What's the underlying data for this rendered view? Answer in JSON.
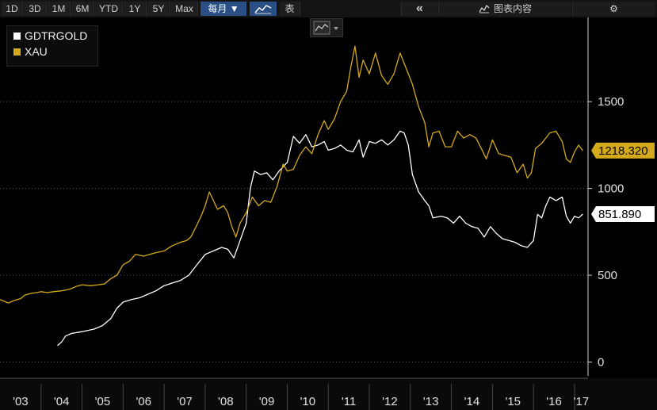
{
  "toolbar": {
    "periods": [
      "1D",
      "3D",
      "1M",
      "6M",
      "YTD",
      "1Y",
      "5Y",
      "Max"
    ],
    "frequency": "每月 ▼",
    "table_label": "表",
    "collapse_label": "«",
    "chart_content_label": "图表内容",
    "settings_label": "⚙"
  },
  "colors": {
    "gdtrgold": "#ffffff",
    "xau": "#d4aa1c",
    "background": "#000000",
    "toolbar_selected": "#2a4f86"
  },
  "chart_data": {
    "type": "line",
    "x_tick_labels": [
      "'03",
      "'04",
      "'05",
      "'06",
      "'07",
      "'08",
      "'09",
      "'10",
      "'11",
      "'12",
      "'13",
      "'14",
      "'15",
      "'16",
      "'17"
    ],
    "y_ticks": [
      0,
      500,
      1000,
      1500
    ],
    "ylim": [
      -80,
      1985
    ],
    "xlim": [
      2003.0,
      2017.33
    ],
    "grid": true,
    "legend_position": "top-left",
    "series": [
      {
        "name": "GDTRGOLD",
        "color": "#ffffff",
        "last_value_label": "851.890",
        "points": [
          [
            2004.4,
            95
          ],
          [
            2004.5,
            115
          ],
          [
            2004.6,
            150
          ],
          [
            2004.75,
            165
          ],
          [
            2005.0,
            175
          ],
          [
            2005.3,
            190
          ],
          [
            2005.5,
            210
          ],
          [
            2005.7,
            250
          ],
          [
            2005.85,
            310
          ],
          [
            2006.0,
            345
          ],
          [
            2006.2,
            360
          ],
          [
            2006.4,
            370
          ],
          [
            2006.6,
            390
          ],
          [
            2006.8,
            410
          ],
          [
            2007.0,
            440
          ],
          [
            2007.2,
            455
          ],
          [
            2007.4,
            470
          ],
          [
            2007.6,
            500
          ],
          [
            2007.8,
            560
          ],
          [
            2008.0,
            620
          ],
          [
            2008.2,
            640
          ],
          [
            2008.4,
            660
          ],
          [
            2008.55,
            650
          ],
          [
            2008.7,
            600
          ],
          [
            2008.85,
            700
          ],
          [
            2009.0,
            800
          ],
          [
            2009.1,
            1000
          ],
          [
            2009.2,
            1100
          ],
          [
            2009.35,
            1080
          ],
          [
            2009.5,
            1090
          ],
          [
            2009.65,
            1050
          ],
          [
            2009.8,
            1100
          ],
          [
            2010.0,
            1150
          ],
          [
            2010.15,
            1300
          ],
          [
            2010.3,
            1260
          ],
          [
            2010.45,
            1310
          ],
          [
            2010.6,
            1240
          ],
          [
            2010.75,
            1250
          ],
          [
            2010.9,
            1270
          ],
          [
            2011.0,
            1220
          ],
          [
            2011.15,
            1230
          ],
          [
            2011.3,
            1250
          ],
          [
            2011.45,
            1220
          ],
          [
            2011.6,
            1210
          ],
          [
            2011.75,
            1280
          ],
          [
            2011.85,
            1180
          ],
          [
            2012.0,
            1270
          ],
          [
            2012.15,
            1260
          ],
          [
            2012.3,
            1280
          ],
          [
            2012.45,
            1250
          ],
          [
            2012.6,
            1280
          ],
          [
            2012.75,
            1330
          ],
          [
            2012.85,
            1320
          ],
          [
            2012.95,
            1250
          ],
          [
            2013.05,
            1080
          ],
          [
            2013.2,
            980
          ],
          [
            2013.35,
            930
          ],
          [
            2013.45,
            900
          ],
          [
            2013.55,
            830
          ],
          [
            2013.75,
            840
          ],
          [
            2013.9,
            830
          ],
          [
            2014.05,
            800
          ],
          [
            2014.2,
            840
          ],
          [
            2014.35,
            800
          ],
          [
            2014.5,
            780
          ],
          [
            2014.65,
            770
          ],
          [
            2014.8,
            720
          ],
          [
            2014.95,
            780
          ],
          [
            2015.1,
            740
          ],
          [
            2015.25,
            710
          ],
          [
            2015.4,
            700
          ],
          [
            2015.55,
            690
          ],
          [
            2015.7,
            670
          ],
          [
            2015.85,
            660
          ],
          [
            2016.0,
            700
          ],
          [
            2016.1,
            850
          ],
          [
            2016.2,
            830
          ],
          [
            2016.3,
            900
          ],
          [
            2016.4,
            950
          ],
          [
            2016.55,
            930
          ],
          [
            2016.7,
            950
          ],
          [
            2016.8,
            840
          ],
          [
            2016.9,
            800
          ],
          [
            2017.0,
            840
          ],
          [
            2017.1,
            830
          ],
          [
            2017.2,
            852
          ]
        ]
      },
      {
        "name": "XAU",
        "color": "#d4aa1c",
        "last_value_label": "1218.320",
        "points": [
          [
            2003.0,
            360
          ],
          [
            2003.1,
            350
          ],
          [
            2003.2,
            340
          ],
          [
            2003.35,
            355
          ],
          [
            2003.5,
            365
          ],
          [
            2003.6,
            385
          ],
          [
            2003.75,
            395
          ],
          [
            2003.9,
            400
          ],
          [
            2004.0,
            405
          ],
          [
            2004.15,
            400
          ],
          [
            2004.3,
            405
          ],
          [
            2004.5,
            410
          ],
          [
            2004.7,
            420
          ],
          [
            2004.85,
            435
          ],
          [
            2005.0,
            445
          ],
          [
            2005.2,
            440
          ],
          [
            2005.4,
            445
          ],
          [
            2005.55,
            450
          ],
          [
            2005.7,
            480
          ],
          [
            2005.85,
            500
          ],
          [
            2006.0,
            560
          ],
          [
            2006.15,
            580
          ],
          [
            2006.3,
            620
          ],
          [
            2006.5,
            610
          ],
          [
            2006.65,
            620
          ],
          [
            2006.8,
            630
          ],
          [
            2007.0,
            640
          ],
          [
            2007.2,
            670
          ],
          [
            2007.4,
            690
          ],
          [
            2007.55,
            700
          ],
          [
            2007.65,
            720
          ],
          [
            2007.8,
            790
          ],
          [
            2007.9,
            840
          ],
          [
            2008.0,
            900
          ],
          [
            2008.1,
            980
          ],
          [
            2008.2,
            930
          ],
          [
            2008.3,
            880
          ],
          [
            2008.45,
            900
          ],
          [
            2008.55,
            860
          ],
          [
            2008.65,
            780
          ],
          [
            2008.75,
            720
          ],
          [
            2008.85,
            800
          ],
          [
            2009.0,
            860
          ],
          [
            2009.15,
            950
          ],
          [
            2009.3,
            900
          ],
          [
            2009.45,
            930
          ],
          [
            2009.6,
            920
          ],
          [
            2009.75,
            1010
          ],
          [
            2009.9,
            1140
          ],
          [
            2010.0,
            1100
          ],
          [
            2010.15,
            1110
          ],
          [
            2010.3,
            1190
          ],
          [
            2010.45,
            1240
          ],
          [
            2010.6,
            1200
          ],
          [
            2010.75,
            1310
          ],
          [
            2010.9,
            1390
          ],
          [
            2011.0,
            1340
          ],
          [
            2011.15,
            1400
          ],
          [
            2011.3,
            1500
          ],
          [
            2011.45,
            1560
          ],
          [
            2011.55,
            1700
          ],
          [
            2011.65,
            1820
          ],
          [
            2011.75,
            1640
          ],
          [
            2011.85,
            1740
          ],
          [
            2012.0,
            1660
          ],
          [
            2012.15,
            1780
          ],
          [
            2012.3,
            1650
          ],
          [
            2012.45,
            1600
          ],
          [
            2012.6,
            1660
          ],
          [
            2012.75,
            1780
          ],
          [
            2012.85,
            1720
          ],
          [
            2012.95,
            1660
          ],
          [
            2013.05,
            1600
          ],
          [
            2013.2,
            1470
          ],
          [
            2013.35,
            1380
          ],
          [
            2013.45,
            1240
          ],
          [
            2013.55,
            1320
          ],
          [
            2013.7,
            1330
          ],
          [
            2013.85,
            1240
          ],
          [
            2014.0,
            1240
          ],
          [
            2014.15,
            1330
          ],
          [
            2014.3,
            1290
          ],
          [
            2014.45,
            1310
          ],
          [
            2014.6,
            1290
          ],
          [
            2014.75,
            1220
          ],
          [
            2014.85,
            1170
          ],
          [
            2015.0,
            1280
          ],
          [
            2015.15,
            1200
          ],
          [
            2015.3,
            1190
          ],
          [
            2015.45,
            1180
          ],
          [
            2015.6,
            1090
          ],
          [
            2015.75,
            1140
          ],
          [
            2015.85,
            1060
          ],
          [
            2015.95,
            1090
          ],
          [
            2016.05,
            1230
          ],
          [
            2016.2,
            1260
          ],
          [
            2016.3,
            1290
          ],
          [
            2016.4,
            1320
          ],
          [
            2016.55,
            1330
          ],
          [
            2016.7,
            1270
          ],
          [
            2016.8,
            1170
          ],
          [
            2016.9,
            1150
          ],
          [
            2017.0,
            1210
          ],
          [
            2017.1,
            1250
          ],
          [
            2017.2,
            1218
          ]
        ]
      }
    ]
  }
}
